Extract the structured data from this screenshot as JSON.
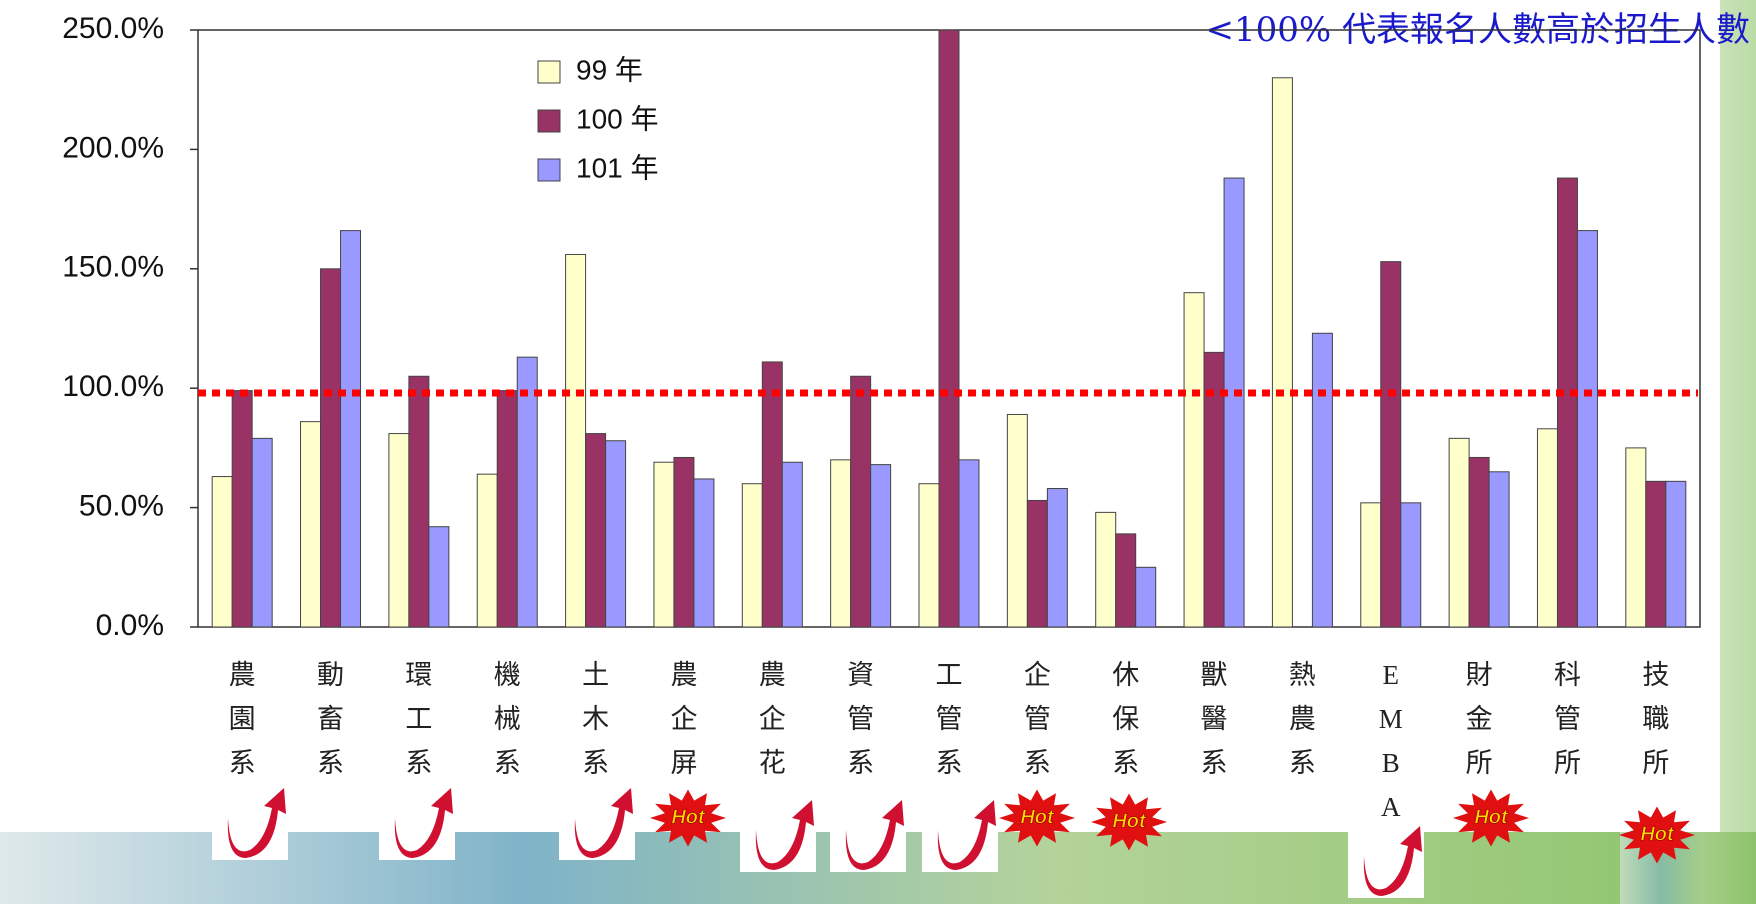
{
  "chart_data": {
    "type": "bar",
    "annotation": "<100% 代表報名人數高於招生人數",
    "badge_label": "Hot",
    "categories": [
      "農園系",
      "動畜系",
      "環工系",
      "機械系",
      "土木系",
      "農企屏",
      "農企花",
      "資管系",
      "工管系",
      "企管系",
      "休保系",
      "獸醫系",
      "熱農系",
      "EMBA",
      "財金所",
      "科管所",
      "技職所"
    ],
    "series": [
      {
        "name": "99 年",
        "color": "#ffffcc",
        "values": [
          63,
          86,
          81,
          64,
          156,
          69,
          60,
          70,
          60,
          89,
          48,
          140,
          230,
          52,
          79,
          83,
          75
        ]
      },
      {
        "name": "100 年",
        "color": "#993366",
        "values": [
          99,
          150,
          105,
          99,
          81,
          71,
          111,
          105,
          250,
          53,
          39,
          115,
          null,
          153,
          71,
          188,
          61
        ]
      },
      {
        "name": "101 年",
        "color": "#9999ff",
        "values": [
          79,
          166,
          42,
          113,
          78,
          62,
          69,
          68,
          70,
          58,
          25,
          188,
          123,
          52,
          65,
          166,
          61
        ]
      }
    ],
    "reference_line": {
      "value": 98,
      "color": "#ff0000"
    },
    "ylim": [
      0,
      250
    ],
    "yticks": [
      {
        "value": 0,
        "label": "0.0%"
      },
      {
        "value": 50,
        "label": "50.0%"
      },
      {
        "value": 100,
        "label": "100.0%"
      },
      {
        "value": 150,
        "label": "150.0%"
      },
      {
        "value": 200,
        "label": "200.0%"
      },
      {
        "value": 250,
        "label": "250.0%"
      }
    ],
    "legend": "upper-left"
  }
}
